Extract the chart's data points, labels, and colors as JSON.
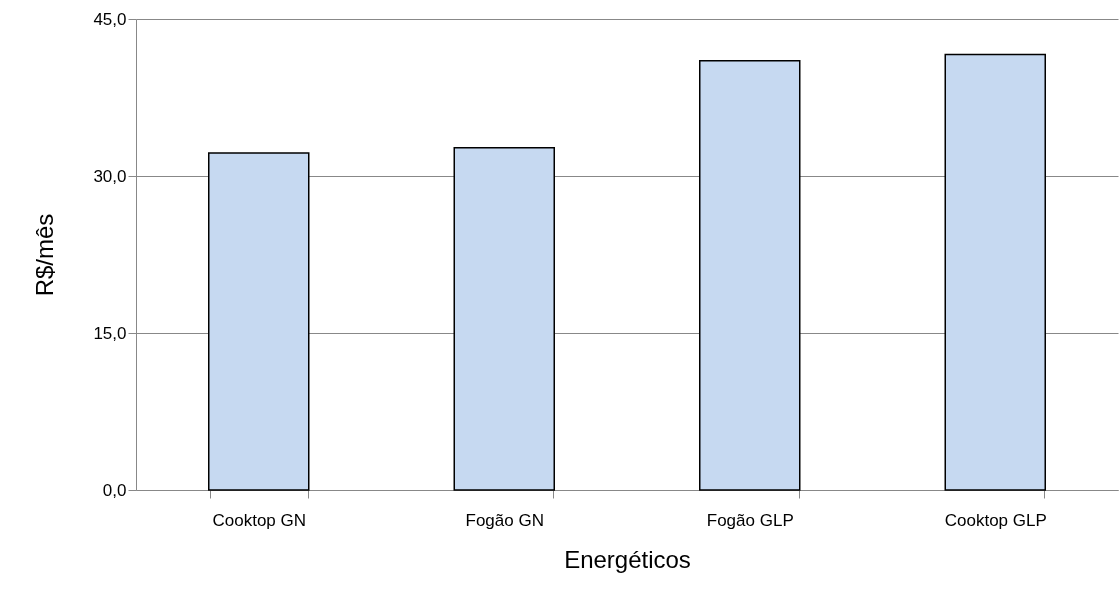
{
  "chart_data": {
    "type": "bar",
    "xlabel": "Energéticos",
    "ylabel": "R$/mês",
    "categories": [
      "Cooktop GN",
      "Fogão GN",
      "Fogão GLP",
      "Cooktop GLP"
    ],
    "values": [
      32.2,
      32.7,
      41.0,
      41.6
    ],
    "color": "#c6d9f1",
    "ylim": [
      0,
      45
    ],
    "yticks": [
      {
        "value": 0,
        "label": "0,0"
      },
      {
        "value": 15,
        "label": "15,0"
      },
      {
        "value": 30,
        "label": "30,0"
      },
      {
        "value": 45,
        "label": "45,0"
      }
    ],
    "grid": "y"
  }
}
